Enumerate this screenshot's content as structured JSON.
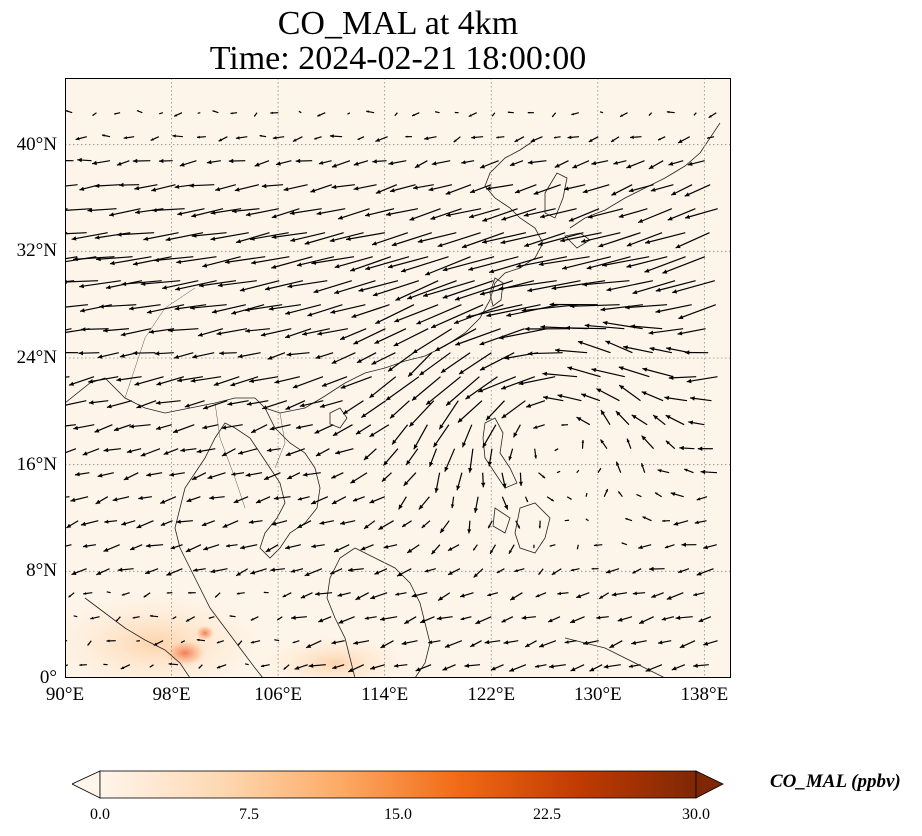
{
  "title": {
    "line1": "CO_MAL at 4km",
    "line2": "Time: 2024-02-21 18:00:00"
  },
  "map": {
    "lon_range": [
      90,
      140
    ],
    "lat_range": [
      0,
      45
    ],
    "gridlines": true,
    "lon_ticks": [
      "90°E",
      "98°E",
      "106°E",
      "114°E",
      "122°E",
      "130°E",
      "138°E"
    ],
    "lat_ticks": [
      "0°",
      "8°N",
      "16°N",
      "24°N",
      "32°N",
      "40°N"
    ],
    "lon_tick_values": [
      90,
      98,
      106,
      114,
      122,
      130,
      138
    ],
    "lat_tick_values": [
      0,
      8,
      16,
      24,
      32,
      40
    ],
    "field": "CO_MAL",
    "overlay": "wind vectors (quiver)"
  },
  "colorbar": {
    "label": "CO_MAL (ppbv)",
    "ticks": [
      "0.0",
      "7.5",
      "15.0",
      "22.5",
      "30.0"
    ],
    "tick_values": [
      0,
      7.5,
      15,
      22.5,
      30
    ],
    "range": [
      0,
      30
    ],
    "extend": "both",
    "colormap": [
      "#fff5eb",
      "#fdd9b4",
      "#fdab67",
      "#f16b16",
      "#c23b02",
      "#7f2704"
    ]
  }
}
